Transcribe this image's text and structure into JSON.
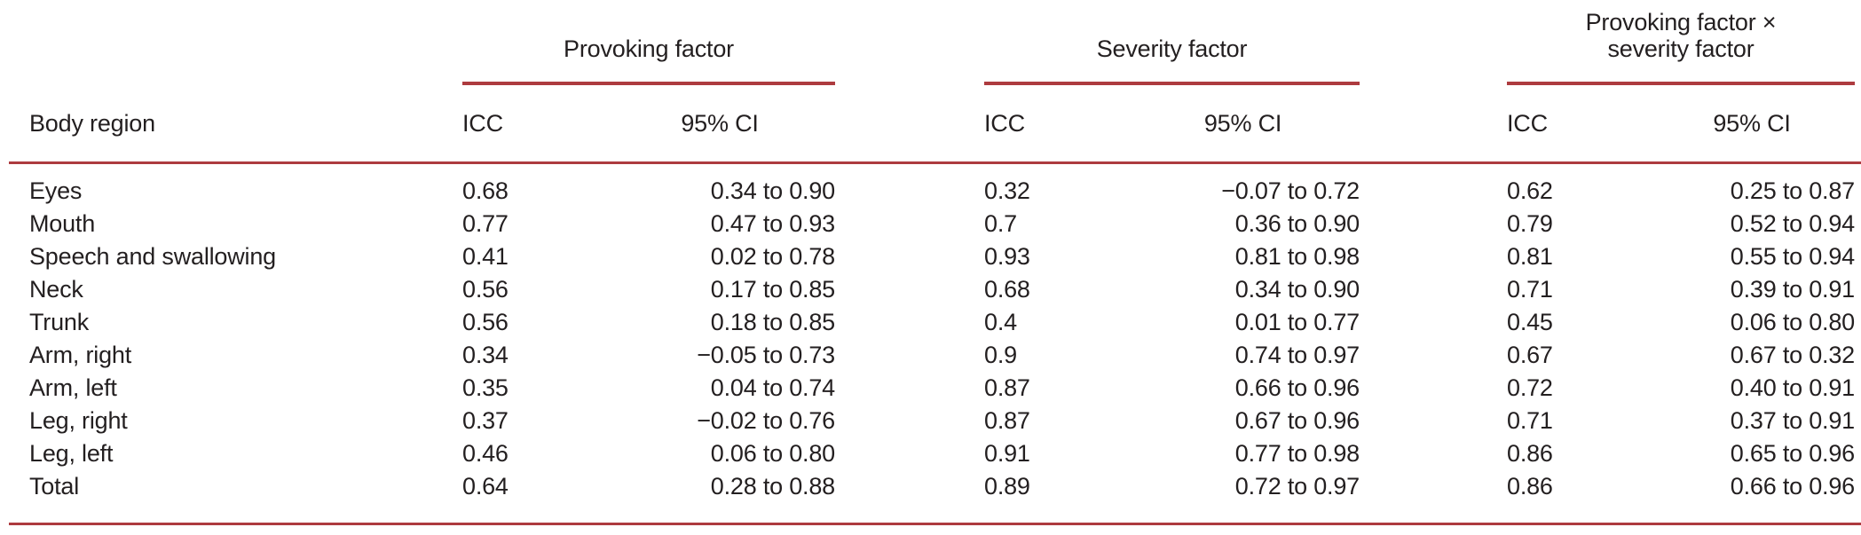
{
  "table": {
    "region_header": "Body region",
    "groups": [
      {
        "label": "Provoking factor",
        "icc": "ICC",
        "ci": "95% CI"
      },
      {
        "label": "Severity factor",
        "icc": "ICC",
        "ci": "95% CI"
      },
      {
        "label": "Provoking factor ×\nseverity factor",
        "icc": "ICC",
        "ci": "95% CI"
      }
    ],
    "rows": [
      {
        "region": "Eyes",
        "values": [
          "0.68",
          "0.34 to 0.90",
          "0.32",
          "−0.07 to 0.72",
          "0.62",
          "0.25 to 0.87"
        ]
      },
      {
        "region": "Mouth",
        "values": [
          "0.77",
          "0.47 to 0.93",
          "0.7",
          "0.36 to 0.90",
          "0.79",
          "0.52 to 0.94"
        ]
      },
      {
        "region": "Speech and swallowing",
        "values": [
          "0.41",
          "0.02 to 0.78",
          "0.93",
          "0.81 to 0.98",
          "0.81",
          "0.55 to 0.94"
        ]
      },
      {
        "region": "Neck",
        "values": [
          "0.56",
          "0.17 to 0.85",
          "0.68",
          "0.34 to 0.90",
          "0.71",
          "0.39 to 0.91"
        ]
      },
      {
        "region": "Trunk",
        "values": [
          "0.56",
          "0.18 to 0.85",
          "0.4",
          "0.01 to 0.77",
          "0.45",
          "0.06 to 0.80"
        ]
      },
      {
        "region": "Arm, right",
        "values": [
          "0.34",
          "−0.05 to 0.73",
          "0.9",
          "0.74 to 0.97",
          "0.67",
          "0.67 to 0.32"
        ]
      },
      {
        "region": "Arm, left",
        "values": [
          "0.35",
          "0.04 to 0.74",
          "0.87",
          "0.66 to 0.96",
          "0.72",
          "0.40 to 0.91"
        ]
      },
      {
        "region": "Leg, right",
        "values": [
          "0.37",
          "−0.02 to 0.76",
          "0.87",
          "0.67 to 0.96",
          "0.71",
          "0.37 to 0.91"
        ]
      },
      {
        "region": "Leg, left",
        "values": [
          "0.46",
          "0.06 to 0.80",
          "0.91",
          "0.77 to 0.98",
          "0.86",
          "0.65 to 0.96"
        ]
      },
      {
        "region": "Total",
        "values": [
          "0.64",
          "0.28 to 0.88",
          "0.89",
          "0.72 to 0.97",
          "0.86",
          "0.66 to 0.96"
        ]
      }
    ]
  },
  "colors": {
    "rule_red": "#ad3b3f",
    "text": "#231f20",
    "background": "#ffffff"
  }
}
